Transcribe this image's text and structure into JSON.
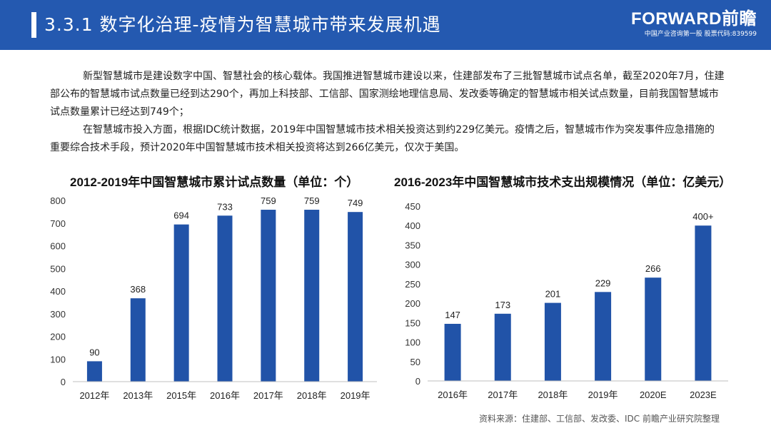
{
  "header": {
    "title": "3.3.1 数字化治理-疫情为智慧城市带来发展机遇",
    "logo_main": "FORWARD前瞻",
    "logo_sub": "中国产业咨询第一股 股票代码:839599"
  },
  "colors": {
    "header_bg": "#2459b0",
    "bar": "#2153a8"
  },
  "text": {
    "para1": "新型智慧城市是建设数字中国、智慧社会的核心载体。我国推进智慧城市建设以来，住建部发布了三批智慧城市试点名单，截至2020年7月，住建部公布的智慧城市试点数量已经到达290个，再加上科技部、工信部、国家测绘地理信息局、发改委等确定的智慧城市相关试点数量，目前我国智慧城市试点数量累计已经达到749个；",
    "para2": "在智慧城市投入方面，根据IDC统计数据，2019年中国智慧城市技术相关投资达到约229亿美元。疫情之后，智慧城市作为突发事件应急措施的重要综合技术手段，预计2020年中国智慧城市技术相关投资将达到266亿美元，仅次于美国。"
  },
  "source": "资料来源：住建部、工信部、发改委、IDC 前瞻产业研究院整理",
  "chart_data": [
    {
      "type": "bar",
      "title": "2012-2019年中国智慧城市累计试点数量（单位：个）",
      "categories": [
        "2012年",
        "2013年",
        "2015年",
        "2016年",
        "2017年",
        "2018年",
        "2019年"
      ],
      "values": [
        90,
        368,
        694,
        733,
        759,
        759,
        749
      ],
      "labels": [
        "90",
        "368",
        "694",
        "733",
        "759",
        "759",
        "749"
      ],
      "ylim": [
        0,
        800
      ],
      "yticks": [
        0,
        100,
        200,
        300,
        400,
        500,
        600,
        700,
        800
      ],
      "grid": false
    },
    {
      "type": "bar",
      "title": "2016-2023年中国智慧城市技术支出规模情况（单位：亿美元）",
      "categories": [
        "2016年",
        "2017年",
        "2018年",
        "2019年",
        "2020E",
        "2023E"
      ],
      "values": [
        147,
        173,
        201,
        229,
        266,
        400
      ],
      "labels": [
        "147",
        "173",
        "201",
        "229",
        "266",
        "400+"
      ],
      "ylim": [
        0,
        450
      ],
      "yticks": [
        0,
        50,
        100,
        150,
        200,
        250,
        300,
        350,
        400,
        450
      ],
      "grid": false
    }
  ]
}
